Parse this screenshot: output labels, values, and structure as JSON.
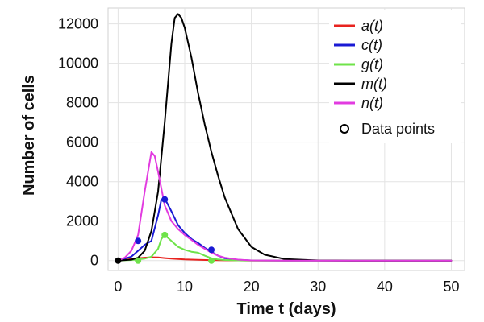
{
  "chart_data": {
    "type": "line",
    "title": "",
    "xlabel": "Time t (days)",
    "ylabel": "Number of cells",
    "xlim": [
      -1.5,
      52
    ],
    "ylim": [
      -500,
      12800
    ],
    "x_ticks": [
      0,
      10,
      20,
      30,
      40,
      50
    ],
    "y_ticks": [
      0,
      2000,
      4000,
      6000,
      8000,
      10000,
      12000
    ],
    "x_tick_labels": [
      "0",
      "10",
      "20",
      "30",
      "40",
      "50"
    ],
    "y_tick_labels": [
      "0",
      "2000",
      "4000",
      "6000",
      "8000",
      "10000",
      "12000"
    ],
    "grid": true,
    "legend_position": "top-right",
    "series": [
      {
        "name": "a(t)",
        "color": "#e8231f",
        "x": [
          0,
          2,
          3,
          4,
          5,
          6,
          7,
          8,
          10,
          12,
          14,
          16,
          18,
          20,
          30,
          40,
          50
        ],
        "y": [
          0,
          80,
          120,
          150,
          170,
          160,
          130,
          100,
          60,
          40,
          25,
          15,
          8,
          4,
          0,
          0,
          0
        ]
      },
      {
        "name": "c(t)",
        "color": "#1a1ad4",
        "x": [
          0,
          2,
          3,
          4,
          5,
          6,
          6.5,
          7,
          8,
          9,
          10,
          11,
          12,
          13,
          14,
          15,
          16,
          18,
          20,
          25,
          30,
          40,
          50
        ],
        "y": [
          0,
          200,
          500,
          800,
          1000,
          2300,
          3100,
          3150,
          2500,
          1800,
          1400,
          1100,
          900,
          650,
          450,
          250,
          120,
          40,
          10,
          0,
          0,
          0,
          0
        ]
      },
      {
        "name": "g(t)",
        "color": "#6fe34a",
        "x": [
          0,
          2,
          3,
          4,
          5,
          6,
          6.5,
          7,
          8,
          9,
          10,
          11,
          12,
          13,
          14,
          15,
          16,
          18,
          20,
          25,
          30,
          40,
          50
        ],
        "y": [
          0,
          30,
          60,
          100,
          200,
          600,
          1100,
          1300,
          1000,
          700,
          550,
          450,
          400,
          250,
          120,
          60,
          30,
          10,
          0,
          0,
          0,
          0,
          0
        ]
      },
      {
        "name": "m(t)",
        "color": "#000000",
        "x": [
          0,
          2,
          3,
          4,
          5,
          6,
          7,
          8,
          8.5,
          9,
          9.5,
          10,
          11,
          12,
          13,
          14,
          15,
          16,
          18,
          20,
          22,
          25,
          30,
          35,
          40,
          50
        ],
        "y": [
          0,
          50,
          150,
          500,
          1500,
          3500,
          7000,
          11000,
          12300,
          12500,
          12300,
          11800,
          10300,
          8500,
          6900,
          5500,
          4300,
          3200,
          1600,
          700,
          300,
          80,
          10,
          0,
          0,
          0
        ]
      },
      {
        "name": "n(t)",
        "color": "#e23be0",
        "x": [
          0,
          1,
          2,
          3,
          4,
          5,
          5.5,
          6,
          7,
          8,
          9,
          10,
          11,
          12,
          13,
          14,
          15,
          16,
          18,
          20,
          25,
          30,
          40,
          50
        ],
        "y": [
          0,
          150,
          500,
          1300,
          3500,
          5500,
          5300,
          4500,
          2800,
          2000,
          1600,
          1300,
          1050,
          800,
          600,
          400,
          250,
          150,
          50,
          10,
          0,
          0,
          0,
          0
        ]
      }
    ],
    "data_points": {
      "name": "Data points",
      "points": [
        {
          "x": 0,
          "y": 0,
          "color": "#000000"
        },
        {
          "x": 3,
          "y": 1000,
          "color": "#1a1ad4"
        },
        {
          "x": 7,
          "y": 3100,
          "color": "#1a1ad4"
        },
        {
          "x": 14,
          "y": 550,
          "color": "#1a1ad4"
        },
        {
          "x": 3,
          "y": 0,
          "color": "#6fe34a"
        },
        {
          "x": 7,
          "y": 1300,
          "color": "#6fe34a"
        },
        {
          "x": 14,
          "y": 0,
          "color": "#6fe34a"
        }
      ]
    }
  }
}
